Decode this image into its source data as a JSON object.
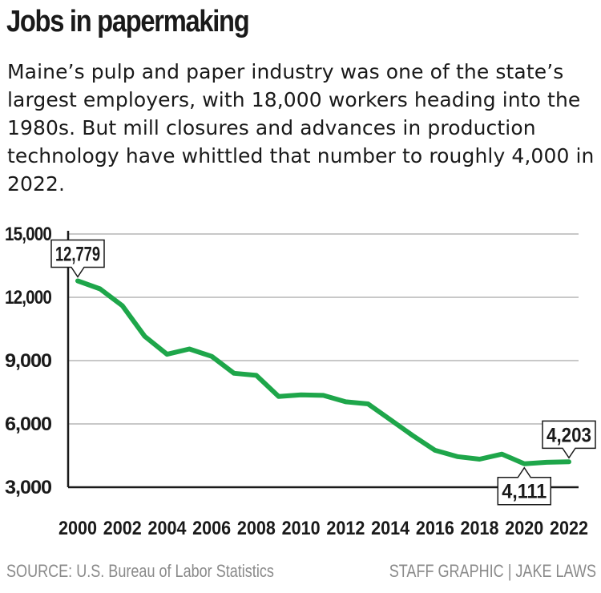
{
  "header": {
    "title": "Jobs in papermaking",
    "subtitle": "Maine’s pulp and paper industry was one of the state’s largest employers, with 18,000 workers heading into the 1980s. But mill closures and advances in production technology have whittled that number to roughly 4,000 in 2022."
  },
  "chart_data": {
    "type": "line",
    "title": "Jobs in papermaking",
    "xlabel": "",
    "ylabel": "",
    "x": [
      2000,
      2001,
      2002,
      2003,
      2004,
      2005,
      2006,
      2007,
      2008,
      2009,
      2010,
      2011,
      2012,
      2013,
      2014,
      2015,
      2016,
      2017,
      2018,
      2019,
      2020,
      2021,
      2022
    ],
    "series": [
      {
        "name": "Jobs",
        "color": "#1ea64a",
        "values": [
          12779,
          12400,
          11600,
          10150,
          9300,
          9550,
          9200,
          8400,
          8300,
          7300,
          7380,
          7350,
          7050,
          6950,
          6200,
          5450,
          4750,
          4450,
          4330,
          4570,
          4111,
          4180,
          4203
        ]
      }
    ],
    "ylim": [
      3000,
      15000
    ],
    "yticks": [
      3000,
      6000,
      9000,
      12000,
      15000
    ],
    "ytick_labels": [
      "3,000",
      "6,000",
      "9,000",
      "12,000",
      "15,000"
    ],
    "xticks": [
      2000,
      2002,
      2004,
      2006,
      2008,
      2010,
      2012,
      2014,
      2016,
      2018,
      2020,
      2022
    ],
    "xtick_labels": [
      "2000",
      "2002",
      "2004",
      "2006",
      "2008",
      "2010",
      "2012",
      "2014",
      "2016",
      "2018",
      "2020",
      "2022"
    ],
    "grid": true,
    "annotations": [
      {
        "x": 2000,
        "value": 12779,
        "label": "12,779",
        "placement": "above"
      },
      {
        "x": 2020,
        "value": 4111,
        "label": "4,111",
        "placement": "below"
      },
      {
        "x": 2022,
        "value": 4203,
        "label": "4,203",
        "placement": "above"
      }
    ]
  },
  "footer": {
    "source": "SOURCE: U.S. Bureau of Labor Statistics",
    "credit": "STAFF GRAPHIC | JAKE LAWS"
  }
}
